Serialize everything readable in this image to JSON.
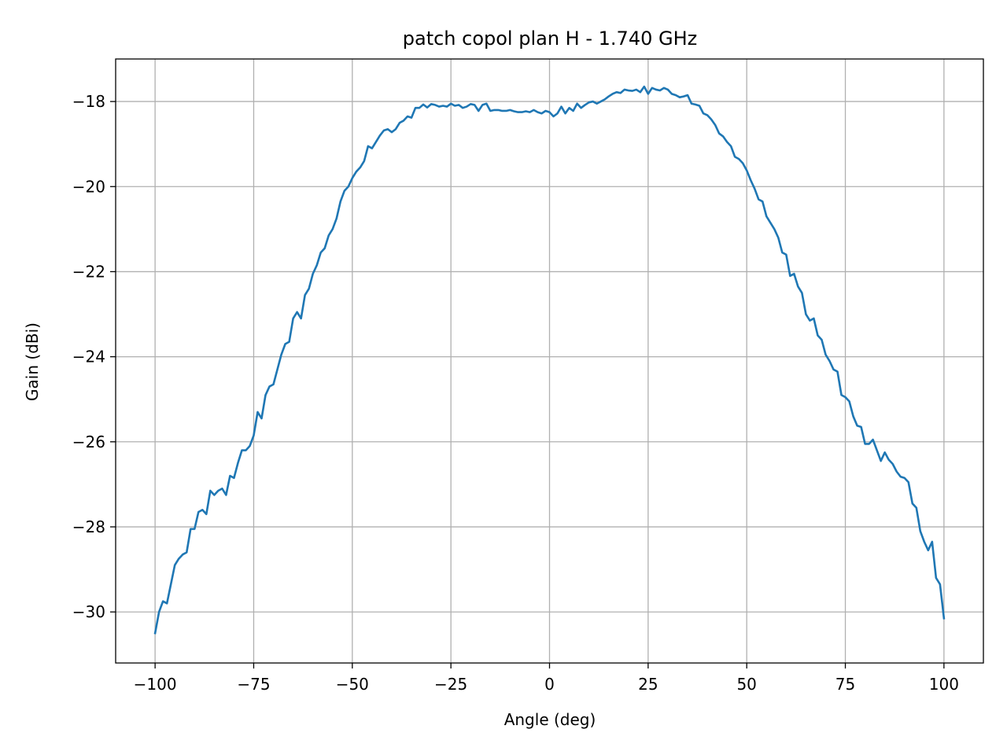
{
  "chart_data": {
    "type": "line",
    "title": "patch copol plan H - 1.740 GHz",
    "xlabel": "Angle (deg)",
    "ylabel": "Gain (dBi)",
    "xlim": [
      -110,
      110
    ],
    "ylim": [
      -31.2,
      -17.0
    ],
    "grid": true,
    "line_color": "#1f77b4",
    "x_ticks": [
      -100,
      -75,
      -50,
      -25,
      0,
      25,
      50,
      75,
      100
    ],
    "x_tick_labels": [
      "−100",
      "−75",
      "−50",
      "−25",
      "0",
      "25",
      "50",
      "75",
      "100"
    ],
    "y_ticks": [
      -30,
      -28,
      -26,
      -24,
      -22,
      -20,
      -18
    ],
    "y_tick_labels": [
      "−30",
      "−28",
      "−26",
      "−24",
      "−22",
      "−20",
      "−18"
    ],
    "series": [
      {
        "x": [
          -100,
          -99,
          -98,
          -97,
          -96,
          -95,
          -94,
          -93,
          -92,
          -91,
          -90,
          -89,
          -88,
          -87,
          -86,
          -85,
          -84,
          -83,
          -82,
          -81,
          -80,
          -79,
          -78,
          -77,
          -76,
          -75,
          -74,
          -73,
          -72,
          -71,
          -70,
          -69,
          -68,
          -67,
          -66,
          -65,
          -64,
          -63,
          -62,
          -61,
          -60,
          -59,
          -58,
          -57,
          -56,
          -55,
          -54,
          -53,
          -52,
          -51,
          -50,
          -49,
          -48,
          -47,
          -46,
          -45,
          -44,
          -43,
          -42,
          -41,
          -40,
          -39,
          -38,
          -37,
          -36,
          -35,
          -34,
          -33,
          -32,
          -31,
          -30,
          -29,
          -28,
          -27,
          -26,
          -25,
          -24,
          -23,
          -22,
          -21,
          -20,
          -19,
          -18,
          -17,
          -16,
          -15,
          -14,
          -13,
          -12,
          -11,
          -10,
          -9,
          -8,
          -7,
          -6,
          -5,
          -4,
          -3,
          -2,
          -1,
          0,
          1,
          2,
          3,
          4,
          5,
          6,
          7,
          8,
          9,
          10,
          11,
          12,
          13,
          14,
          15,
          16,
          17,
          18,
          19,
          20,
          21,
          22,
          23,
          24,
          25,
          26,
          27,
          28,
          29,
          30,
          31,
          32,
          33,
          34,
          35,
          36,
          37,
          38,
          39,
          40,
          41,
          42,
          43,
          44,
          45,
          46,
          47,
          48,
          49,
          50,
          51,
          52,
          53,
          54,
          55,
          56,
          57,
          58,
          59,
          60,
          61,
          62,
          63,
          64,
          65,
          66,
          67,
          68,
          69,
          70,
          71,
          72,
          73,
          74,
          75,
          76,
          77,
          78,
          79,
          80,
          81,
          82,
          83,
          84,
          85,
          86,
          87,
          88,
          89,
          90,
          91,
          92,
          93,
          94,
          95,
          96,
          97,
          98,
          99,
          100
        ],
        "y": [
          -30.5,
          -30.0,
          -29.75,
          -29.8,
          -29.35,
          -28.9,
          -28.75,
          -28.65,
          -28.6,
          -28.05,
          -28.05,
          -27.65,
          -27.6,
          -27.7,
          -27.15,
          -27.25,
          -27.15,
          -27.1,
          -27.25,
          -26.8,
          -26.85,
          -26.5,
          -26.2,
          -26.2,
          -26.1,
          -25.85,
          -25.3,
          -25.45,
          -24.9,
          -24.7,
          -24.65,
          -24.3,
          -23.95,
          -23.7,
          -23.65,
          -23.1,
          -22.95,
          -23.1,
          -22.55,
          -22.4,
          -22.05,
          -21.85,
          -21.55,
          -21.45,
          -21.15,
          -21.0,
          -20.75,
          -20.35,
          -20.1,
          -20.0,
          -19.8,
          -19.65,
          -19.55,
          -19.4,
          -19.05,
          -19.1,
          -18.95,
          -18.8,
          -18.68,
          -18.65,
          -18.72,
          -18.65,
          -18.5,
          -18.45,
          -18.35,
          -18.38,
          -18.15,
          -18.15,
          -18.07,
          -18.14,
          -18.06,
          -18.08,
          -18.12,
          -18.1,
          -18.12,
          -18.05,
          -18.1,
          -18.08,
          -18.15,
          -18.12,
          -18.06,
          -18.08,
          -18.22,
          -18.08,
          -18.05,
          -18.22,
          -18.2,
          -18.2,
          -18.22,
          -18.22,
          -18.2,
          -18.23,
          -18.25,
          -18.25,
          -18.23,
          -18.25,
          -18.2,
          -18.25,
          -18.28,
          -18.22,
          -18.25,
          -18.35,
          -18.28,
          -18.12,
          -18.28,
          -18.15,
          -18.22,
          -18.05,
          -18.15,
          -18.08,
          -18.02,
          -18.0,
          -18.05,
          -18.0,
          -17.95,
          -17.88,
          -17.82,
          -17.78,
          -17.8,
          -17.72,
          -17.74,
          -17.75,
          -17.72,
          -17.78,
          -17.65,
          -17.82,
          -17.68,
          -17.72,
          -17.74,
          -17.68,
          -17.72,
          -17.82,
          -17.85,
          -17.9,
          -17.88,
          -17.85,
          -18.05,
          -18.07,
          -18.1,
          -18.28,
          -18.32,
          -18.42,
          -18.55,
          -18.75,
          -18.82,
          -18.95,
          -19.05,
          -19.3,
          -19.35,
          -19.45,
          -19.62,
          -19.85,
          -20.05,
          -20.3,
          -20.35,
          -20.7,
          -20.85,
          -21.0,
          -21.2,
          -21.55,
          -21.6,
          -22.1,
          -22.05,
          -22.35,
          -22.5,
          -23.0,
          -23.15,
          -23.1,
          -23.5,
          -23.6,
          -23.95,
          -24.1,
          -24.3,
          -24.35,
          -24.9,
          -24.95,
          -25.05,
          -25.4,
          -25.62,
          -25.65,
          -26.05,
          -26.05,
          -25.95,
          -26.2,
          -26.45,
          -26.25,
          -26.42,
          -26.52,
          -26.7,
          -26.82,
          -26.85,
          -26.95,
          -27.45,
          -27.55,
          -28.1,
          -28.35,
          -28.55,
          -28.35,
          -29.2,
          -29.35,
          -30.15
        ]
      }
    ]
  }
}
